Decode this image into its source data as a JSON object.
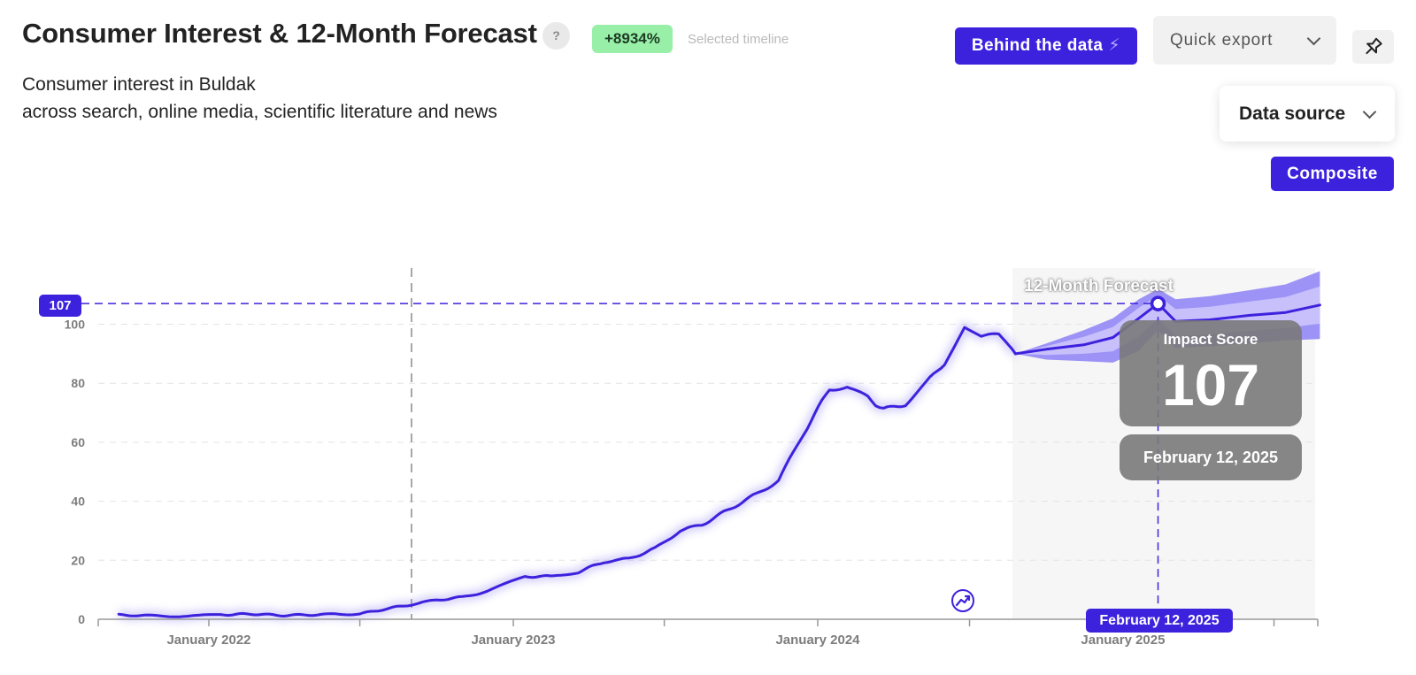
{
  "header": {
    "title": "Consumer Interest & 12-Month Forecast",
    "help_label": "?",
    "growth_badge": "+8934%",
    "growth_label": "Selected timeline",
    "subtitle_line1": "Consumer interest in Buldak",
    "subtitle_line2": "across search, online media, scientific literature and news"
  },
  "toolbar": {
    "behind_label": "Behind the data",
    "export_label": "Quick export",
    "datasource_label": "Data source",
    "composite_label": "Composite"
  },
  "colors": {
    "accent": "#3d22dd",
    "line": "#3d22dd",
    "band_outer": "#9d93f6",
    "band_inner": "#c7c0fb",
    "growth_badge": "#98f0a8"
  },
  "tooltip": {
    "score_title": "Impact Score",
    "score_value": "107",
    "date": "February 12, 2025"
  },
  "crosshair": {
    "y_value": "107",
    "x_label": "February 12, 2025"
  },
  "chart_data": {
    "type": "line",
    "yticks": [
      0,
      20,
      40,
      60,
      80,
      100
    ],
    "xticks": [
      "January 2022",
      "January 2023",
      "January 2024",
      "January 2025"
    ],
    "forecast_label": "12-Month Forecast",
    "series": [
      {
        "values": [
          [
            "2021-09-15",
            1.5
          ],
          [
            "2021-10-20",
            1.2
          ],
          [
            "2021-12-01",
            1.0
          ],
          [
            "2022-01-15",
            1.5
          ],
          [
            "2022-02-20",
            1.8
          ],
          [
            "2022-04-01",
            1.3
          ],
          [
            "2022-05-15",
            1.6
          ],
          [
            "2022-07-01",
            1.8
          ],
          [
            "2022-08-01",
            3.5
          ],
          [
            "2022-09-01",
            5.0
          ],
          [
            "2022-10-01",
            6.5
          ],
          [
            "2022-11-01",
            7.5
          ],
          [
            "2022-12-01",
            9.5
          ],
          [
            "2023-01-15",
            14.5
          ],
          [
            "2023-02-15",
            14.5
          ],
          [
            "2023-03-20",
            16.0
          ],
          [
            "2023-04-20",
            19.5
          ],
          [
            "2023-05-20",
            20.5
          ],
          [
            "2023-06-20",
            24.0
          ],
          [
            "2023-07-20",
            30.0
          ],
          [
            "2023-08-15",
            32.0
          ],
          [
            "2023-09-15",
            37.0
          ],
          [
            "2023-10-20",
            42.5
          ],
          [
            "2023-11-15",
            47.0
          ],
          [
            "2023-12-15",
            63.0
          ],
          [
            "2024-01-15",
            78.0
          ],
          [
            "2024-02-05",
            79.0
          ],
          [
            "2024-03-01",
            75.0
          ],
          [
            "2024-03-20",
            71.0
          ],
          [
            "2024-04-15",
            73.0
          ],
          [
            "2024-05-10",
            80.0
          ],
          [
            "2024-06-01",
            87.0
          ],
          [
            "2024-06-25",
            99.5
          ],
          [
            "2024-07-15",
            96.0
          ],
          [
            "2024-08-05",
            96.0
          ],
          [
            "2024-08-25",
            90.0
          ]
        ]
      },
      {
        "values": [
          [
            "2024-08-25",
            90.0
          ],
          [
            "2024-10-01",
            91.5
          ],
          [
            "2024-11-15",
            93.0
          ],
          [
            "2024-12-20",
            95.5
          ],
          [
            "2025-01-20",
            102.0
          ],
          [
            "2025-02-12",
            107.0
          ],
          [
            "2025-03-05",
            101.0
          ],
          [
            "2025-04-15",
            101.5
          ],
          [
            "2025-06-01",
            103.0
          ],
          [
            "2025-07-15",
            104.0
          ],
          [
            "2025-08-25",
            106.5
          ]
        ],
        "upper": [
          [
            "2024-08-25",
            90.0
          ],
          [
            "2024-10-01",
            93.5
          ],
          [
            "2024-11-15",
            98.0
          ],
          [
            "2024-12-20",
            102.0
          ],
          [
            "2025-01-20",
            108.5
          ],
          [
            "2025-02-12",
            112.0
          ],
          [
            "2025-03-05",
            108.5
          ],
          [
            "2025-04-15",
            109.5
          ],
          [
            "2025-06-01",
            111.5
          ],
          [
            "2025-07-15",
            113.5
          ],
          [
            "2025-08-25",
            118.0
          ]
        ],
        "lower": [
          [
            "2024-08-25",
            90.0
          ],
          [
            "2024-10-01",
            88.0
          ],
          [
            "2024-11-15",
            87.5
          ],
          [
            "2024-12-20",
            87.0
          ],
          [
            "2025-01-20",
            91.0
          ],
          [
            "2025-02-12",
            98.0
          ],
          [
            "2025-03-05",
            92.0
          ],
          [
            "2025-04-15",
            92.5
          ],
          [
            "2025-06-01",
            93.5
          ],
          [
            "2025-07-15",
            94.5
          ],
          [
            "2025-08-25",
            95.0
          ]
        ]
      }
    ]
  }
}
